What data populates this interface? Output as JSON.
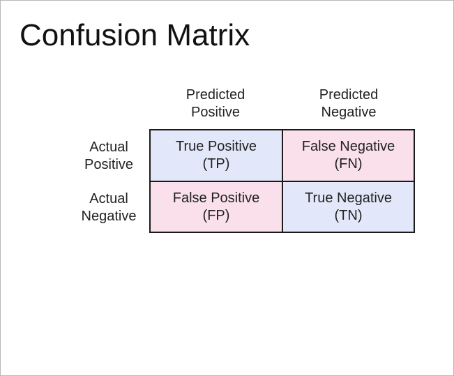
{
  "slide": {
    "title": "Confusion Matrix"
  },
  "columns": [
    {
      "line1": "Predicted",
      "line2": "Positive"
    },
    {
      "line1": "Predicted",
      "line2": "Negative"
    }
  ],
  "rows": [
    {
      "line1": "Actual",
      "line2": "Positive"
    },
    {
      "line1": "Actual",
      "line2": "Negative"
    }
  ],
  "cells": {
    "tp": {
      "label": "True Positive",
      "abbr": "(TP)"
    },
    "fn": {
      "label": "False Negative",
      "abbr": "(FN)"
    },
    "fp": {
      "label": "False Positive",
      "abbr": "(FP)"
    },
    "tn": {
      "label": "True Negative",
      "abbr": "(TN)"
    }
  },
  "colors": {
    "correct_fill": "#e2e8fa",
    "error_fill": "#fae0ea",
    "border": "#1a1a1a"
  }
}
